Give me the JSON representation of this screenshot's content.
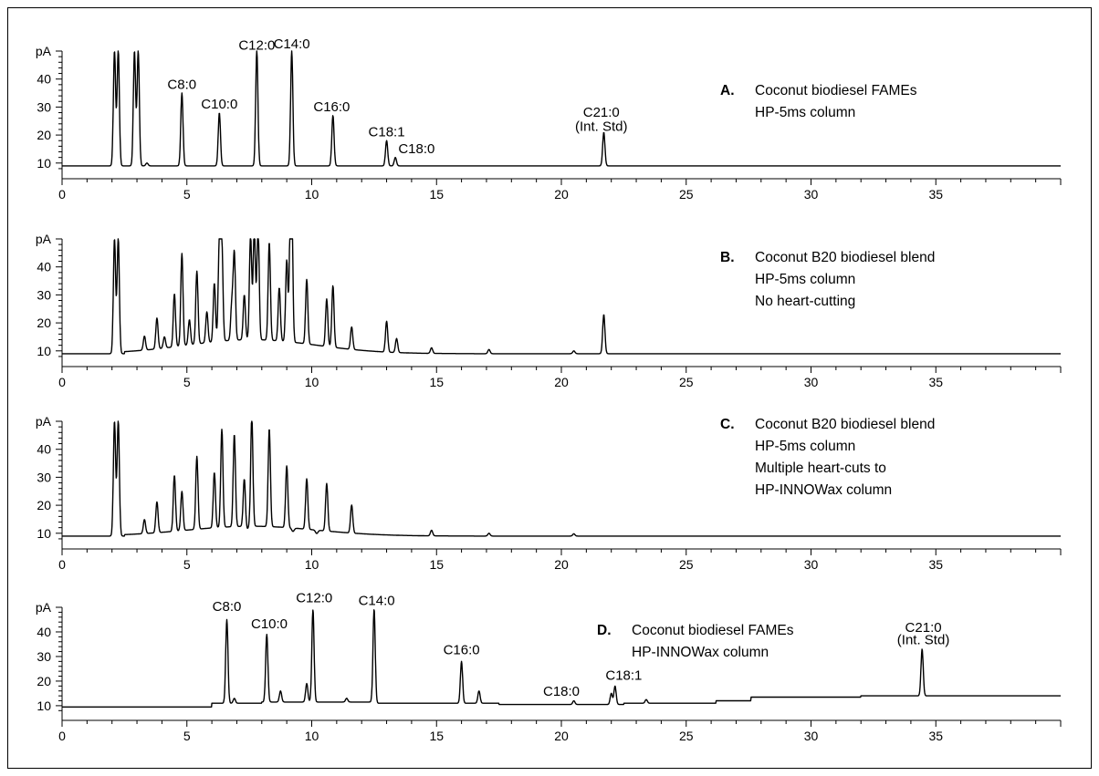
{
  "chart_data": [
    {
      "type": "line",
      "panel": "A.",
      "description": [
        "Coconut biodiesel FAMEs",
        "HP-5ms column"
      ],
      "ylabel": "pA",
      "yticks": [
        10,
        20,
        30,
        40
      ],
      "xticks": [
        0,
        5,
        10,
        15,
        20,
        25,
        30,
        35
      ],
      "xlim": [
        0,
        40
      ],
      "ylim": [
        7,
        50
      ],
      "baseline": 9,
      "peaks": [
        {
          "rt": 2.1,
          "h": 50
        },
        {
          "rt": 2.25,
          "h": 50
        },
        {
          "rt": 2.9,
          "h": 50
        },
        {
          "rt": 3.05,
          "h": 50
        },
        {
          "rt": 3.4,
          "h": 10
        },
        {
          "rt": 4.8,
          "h": 35,
          "label": "C8:0"
        },
        {
          "rt": 6.3,
          "h": 28,
          "label": "C10:0"
        },
        {
          "rt": 7.8,
          "h": 50,
          "label": "C12:0"
        },
        {
          "rt": 9.2,
          "h": 50,
          "label": "C14:0"
        },
        {
          "rt": 10.85,
          "h": 27,
          "label": "C16:0"
        },
        {
          "rt": 13.0,
          "h": 18,
          "label": "C18:1"
        },
        {
          "rt": 13.35,
          "h": 12,
          "label": "C18:0"
        },
        {
          "rt": 21.7,
          "h": 21,
          "label": "C21:0\n(Int. Std)"
        }
      ],
      "annotations": [
        {
          "text": "C8:0",
          "x": 4.8,
          "y": 36.5
        },
        {
          "text": "C10:0",
          "x": 6.3,
          "y": 29.5
        },
        {
          "text": "C12:0",
          "x": 7.8,
          "y": 50.5
        },
        {
          "text": "C14:0",
          "x": 9.2,
          "y": 51
        },
        {
          "text": "C16:0",
          "x": 10.8,
          "y": 28.5
        },
        {
          "text": "C18:1",
          "x": 13.0,
          "y": 19.5
        },
        {
          "text": "C18:0",
          "x": 14.2,
          "y": 13.5
        },
        {
          "text": "C21:0",
          "x": 21.6,
          "y": 26.5
        },
        {
          "text": "(Int. Std)",
          "x": 21.6,
          "y": 21.5
        }
      ]
    },
    {
      "type": "line",
      "panel": "B.",
      "description": [
        "Coconut B20 biodiesel blend",
        "HP-5ms column",
        "No heart-cutting"
      ],
      "ylabel": "pA",
      "yticks": [
        10,
        20,
        30,
        40
      ],
      "xticks": [
        0,
        5,
        10,
        15,
        20,
        25,
        30,
        35
      ],
      "xlim": [
        0,
        40
      ],
      "ylim": [
        7,
        50
      ],
      "baseline": 9,
      "peaks": [
        {
          "rt": 2.1,
          "h": 50
        },
        {
          "rt": 2.25,
          "h": 50
        },
        {
          "rt": 3.3,
          "h": 14
        },
        {
          "rt": 3.8,
          "h": 20
        },
        {
          "rt": 4.1,
          "h": 13
        },
        {
          "rt": 4.5,
          "h": 28
        },
        {
          "rt": 4.8,
          "h": 42
        },
        {
          "rt": 5.1,
          "h": 18
        },
        {
          "rt": 5.4,
          "h": 35
        },
        {
          "rt": 5.8,
          "h": 20
        },
        {
          "rt": 6.1,
          "h": 30
        },
        {
          "rt": 6.3,
          "h": 45
        },
        {
          "rt": 6.4,
          "h": 43
        },
        {
          "rt": 6.8,
          "h": 22
        },
        {
          "rt": 6.9,
          "h": 40
        },
        {
          "rt": 7.3,
          "h": 25
        },
        {
          "rt": 7.55,
          "h": 47
        },
        {
          "rt": 7.7,
          "h": 49
        },
        {
          "rt": 7.85,
          "h": 50
        },
        {
          "rt": 8.3,
          "h": 44
        },
        {
          "rt": 8.7,
          "h": 28
        },
        {
          "rt": 9.0,
          "h": 38
        },
        {
          "rt": 9.15,
          "h": 50
        },
        {
          "rt": 9.2,
          "h": 49
        },
        {
          "rt": 9.8,
          "h": 32
        },
        {
          "rt": 10.6,
          "h": 26
        },
        {
          "rt": 10.85,
          "h": 31
        },
        {
          "rt": 11.6,
          "h": 17
        },
        {
          "rt": 13.0,
          "h": 20
        },
        {
          "rt": 13.4,
          "h": 14
        },
        {
          "rt": 14.8,
          "h": 11
        },
        {
          "rt": 17.1,
          "h": 10.5
        },
        {
          "rt": 20.5,
          "h": 10
        },
        {
          "rt": 21.7,
          "h": 23
        }
      ]
    },
    {
      "type": "line",
      "panel": "C.",
      "description": [
        "Coconut B20 biodiesel blend",
        "HP-5ms column",
        "Multiple heart-cuts to",
        "HP-INNOWax column"
      ],
      "ylabel": "pA",
      "yticks": [
        10,
        20,
        30,
        40
      ],
      "xticks": [
        0,
        5,
        10,
        15,
        20,
        25,
        30,
        35
      ],
      "xlim": [
        0,
        40
      ],
      "ylim": [
        7,
        50
      ],
      "baseline": 9,
      "peaks": [
        {
          "rt": 2.1,
          "h": 50
        },
        {
          "rt": 2.25,
          "h": 50
        },
        {
          "rt": 3.3,
          "h": 14
        },
        {
          "rt": 3.8,
          "h": 20
        },
        {
          "rt": 4.5,
          "h": 29
        },
        {
          "rt": 4.8,
          "h": 23
        },
        {
          "rt": 5.4,
          "h": 35
        },
        {
          "rt": 6.1,
          "h": 30
        },
        {
          "rt": 6.4,
          "h": 44
        },
        {
          "rt": 6.9,
          "h": 42
        },
        {
          "rt": 7.3,
          "h": 26
        },
        {
          "rt": 7.6,
          "h": 48
        },
        {
          "rt": 8.3,
          "h": 44
        },
        {
          "rt": 9.0,
          "h": 31
        },
        {
          "rt": 9.8,
          "h": 27
        },
        {
          "rt": 10.6,
          "h": 26
        },
        {
          "rt": 11.6,
          "h": 19
        },
        {
          "rt": 14.8,
          "h": 11
        },
        {
          "rt": 17.1,
          "h": 10
        },
        {
          "rt": 20.5,
          "h": 9.8
        }
      ],
      "dips": [
        6.1,
        7.4,
        9.25,
        10.2
      ]
    },
    {
      "type": "line",
      "panel": "D.",
      "description": [
        "Coconut biodiesel FAMEs",
        "HP-INNOWax column"
      ],
      "ylabel": "pA",
      "yticks": [
        10,
        20,
        30,
        40
      ],
      "xticks": [
        0,
        5,
        10,
        15,
        20,
        25,
        30,
        35
      ],
      "xlim": [
        0,
        40
      ],
      "ylim": [
        7,
        50
      ],
      "baseline_steps": [
        {
          "x": 0,
          "y": 9.5
        },
        {
          "x": 6.0,
          "y": 11
        },
        {
          "x": 8.0,
          "y": 11.5
        },
        {
          "x": 12.5,
          "y": 11
        },
        {
          "x": 17.5,
          "y": 10.5
        },
        {
          "x": 22.5,
          "y": 11
        },
        {
          "x": 26.2,
          "y": 12
        },
        {
          "x": 27.6,
          "y": 13.5
        },
        {
          "x": 32.0,
          "y": 14
        },
        {
          "x": 40,
          "y": 14
        }
      ],
      "peaks": [
        {
          "rt": 6.6,
          "h": 45,
          "label": "C8:0"
        },
        {
          "rt": 6.9,
          "h": 13
        },
        {
          "rt": 8.2,
          "h": 39,
          "label": "C10:0"
        },
        {
          "rt": 8.75,
          "h": 16
        },
        {
          "rt": 9.8,
          "h": 19
        },
        {
          "rt": 10.05,
          "h": 49,
          "label": "C12:0"
        },
        {
          "rt": 11.4,
          "h": 13
        },
        {
          "rt": 12.5,
          "h": 49,
          "label": "C14:0"
        },
        {
          "rt": 16.0,
          "h": 28,
          "label": "C16:0"
        },
        {
          "rt": 16.7,
          "h": 16
        },
        {
          "rt": 20.5,
          "h": 12,
          "label": "C18:0"
        },
        {
          "rt": 22.0,
          "h": 15
        },
        {
          "rt": 22.15,
          "h": 18,
          "label": "C18:1"
        },
        {
          "rt": 23.4,
          "h": 12.5
        },
        {
          "rt": 34.45,
          "h": 33,
          "label": "C21:0\n(Int. Std)"
        }
      ],
      "annotations": [
        {
          "text": "C8:0",
          "x": 6.6,
          "y": 48.5
        },
        {
          "text": "C10:0",
          "x": 8.3,
          "y": 41.5
        },
        {
          "text": "C12:0",
          "x": 10.1,
          "y": 52
        },
        {
          "text": "C14:0",
          "x": 12.6,
          "y": 51
        },
        {
          "text": "C16:0",
          "x": 16.0,
          "y": 31
        },
        {
          "text": "C18:0",
          "x": 20.0,
          "y": 14
        },
        {
          "text": "C18:1",
          "x": 22.5,
          "y": 20.5
        },
        {
          "text": "C21:0",
          "x": 34.5,
          "y": 40
        },
        {
          "text": "(Int. Std)",
          "x": 34.5,
          "y": 35
        }
      ]
    }
  ]
}
